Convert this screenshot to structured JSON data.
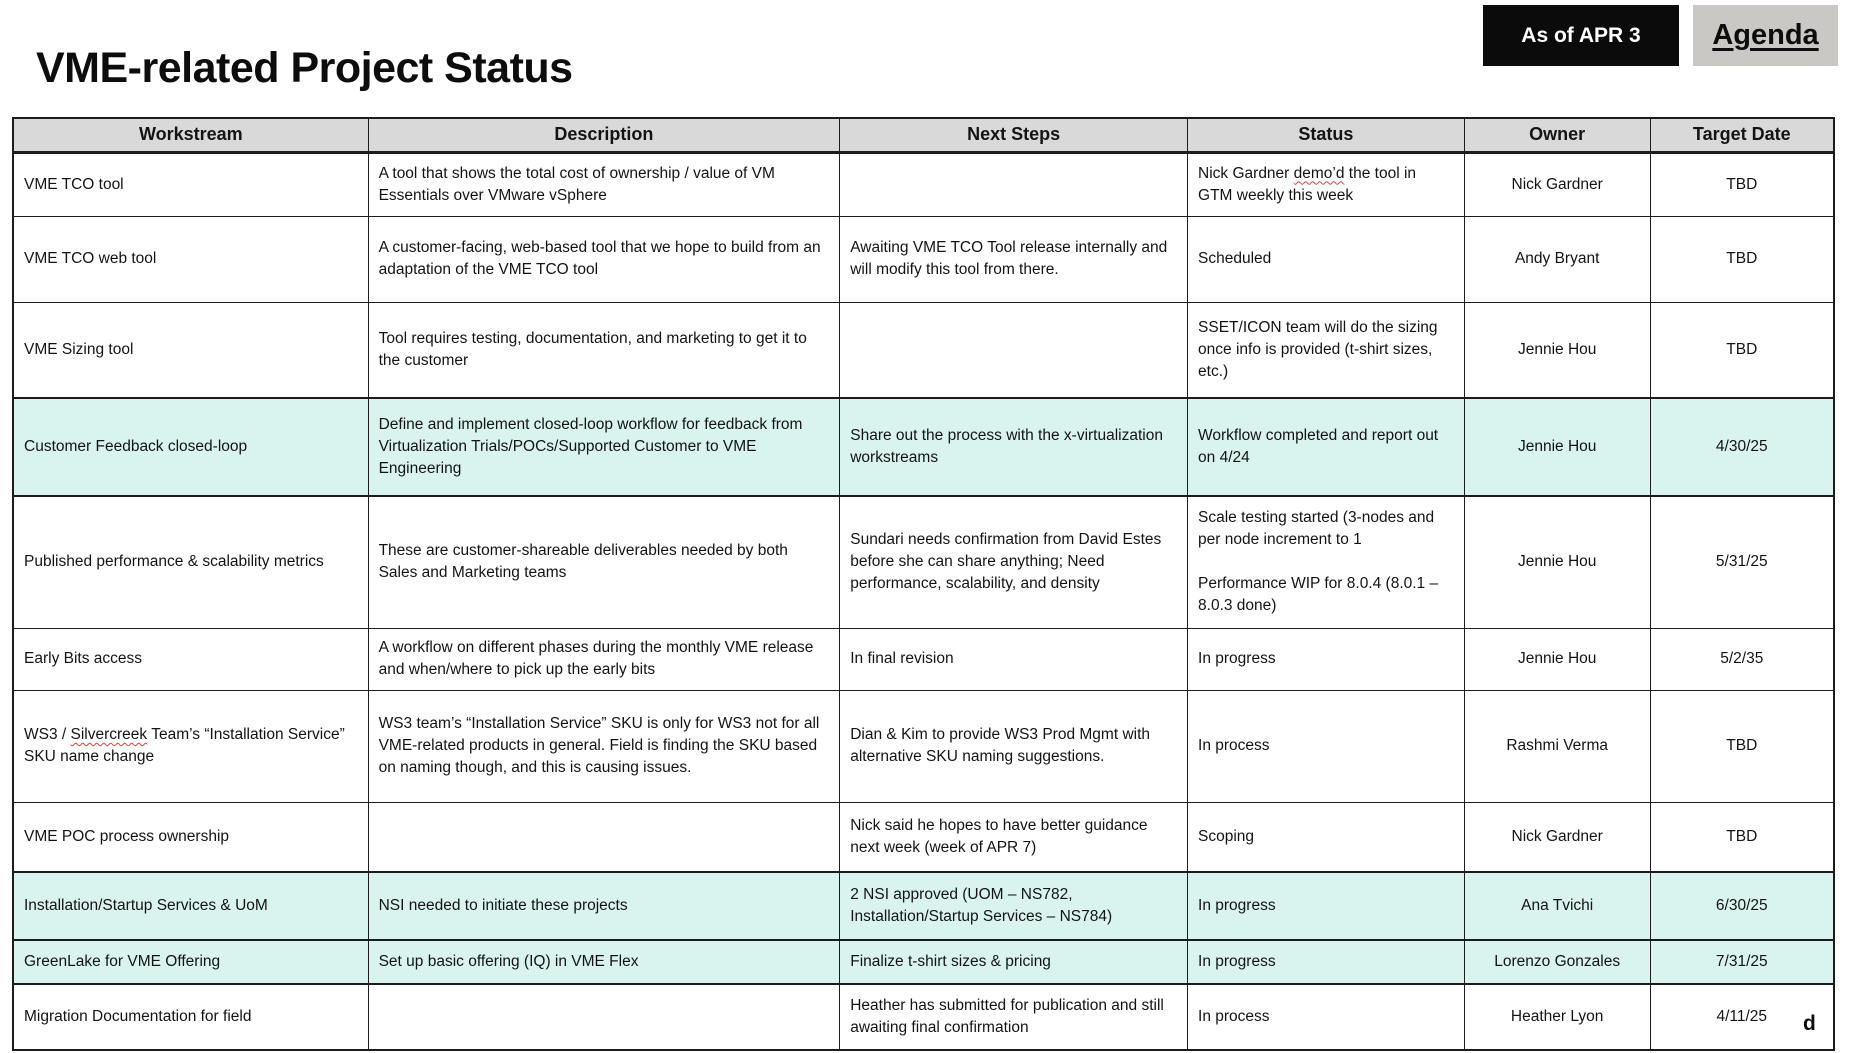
{
  "page": {
    "title": "VME-related Project Status",
    "as_of_badge": "As of APR 3",
    "agenda_link": "Agenda",
    "stray_character": "d"
  },
  "colors": {
    "header_bg": "#d9d9d9",
    "highlight_bg": "#d9f3ee",
    "badge_bg": "#0b0b0b",
    "badge_text": "#ffffff",
    "agenda_bg": "#c9c8c5",
    "border": "#1c1c1c",
    "squiggle": "#d6453c"
  },
  "table": {
    "columns": [
      {
        "key": "workstream",
        "label": "Workstream"
      },
      {
        "key": "description",
        "label": "Description"
      },
      {
        "key": "next_steps",
        "label": "Next Steps"
      },
      {
        "key": "status",
        "label": "Status"
      },
      {
        "key": "owner",
        "label": "Owner"
      },
      {
        "key": "target_date",
        "label": "Target Date"
      }
    ],
    "rows": [
      {
        "workstream": "VME TCO tool",
        "description": "A tool that shows the total cost of ownership / value of VM Essentials over VMware vSphere",
        "next_steps": "",
        "status": [
          {
            "text": "Nick Gardner "
          },
          {
            "text": "demo’d",
            "misspelled": true
          },
          {
            "text": " the tool in GTM weekly this week"
          }
        ],
        "owner": "Nick Gardner",
        "target_date": "TBD",
        "highlighted": false
      },
      {
        "workstream": "VME TCO web tool",
        "description": "A customer-facing, web-based tool that we hope to build from an adaptation of the VME TCO tool",
        "next_steps": "Awaiting VME TCO Tool release internally and will modify this tool from there.",
        "status": "Scheduled",
        "owner": "Andy Bryant",
        "target_date": "TBD",
        "highlighted": false
      },
      {
        "workstream": "VME Sizing tool",
        "description": "Tool requires testing, documentation, and marketing to get it to the customer",
        "next_steps": "",
        "status": "SSET/ICON team will do the sizing once info is provided (t-shirt sizes, etc.)",
        "owner": "Jennie Hou",
        "target_date": "TBD",
        "highlighted": false
      },
      {
        "workstream": "Customer Feedback closed-loop",
        "description": "Define and implement closed-loop workflow for feedback from Virtualization Trials/POCs/Supported Customer to VME Engineering",
        "next_steps": "Share out the process with the x-virtualization workstreams",
        "status": "Workflow completed and report out on 4/24",
        "owner": "Jennie Hou",
        "target_date": "4/30/25",
        "highlighted": true
      },
      {
        "workstream": "Published performance & scalability metrics",
        "description": "These are customer-shareable deliverables needed by both Sales and Marketing teams",
        "next_steps": "Sundari needs confirmation from David Estes before she can share anything; Need performance, scalability, and density",
        "status": "Scale testing started (3-nodes and per node increment to 1\n\nPerformance WIP for 8.0.4 (8.0.1 – 8.0.3 done)",
        "owner": "Jennie Hou",
        "target_date": "5/31/25",
        "highlighted": false
      },
      {
        "workstream": "Early Bits access",
        "description": "A workflow on different phases during the monthly VME release and when/where to pick up the early bits",
        "next_steps": "In final revision",
        "status": "In progress",
        "owner": "Jennie Hou",
        "target_date": "5/2/35",
        "highlighted": false
      },
      {
        "workstream": [
          {
            "text": "WS3 / "
          },
          {
            "text": "Silvercreek",
            "misspelled": true
          },
          {
            "text": " Team’s “Installation Service” SKU name change"
          }
        ],
        "description": "WS3 team’s “Installation Service” SKU is only for WS3 not for all VME-related products in general. Field is finding the SKU based on naming though, and this is causing issues.",
        "next_steps": "Dian & Kim to provide WS3 Prod Mgmt with alternative SKU naming suggestions.",
        "status": "In process",
        "owner": "Rashmi Verma",
        "target_date": "TBD",
        "highlighted": false
      },
      {
        "workstream": "VME POC process ownership",
        "description": "",
        "next_steps": "Nick said he hopes to have better guidance next week (week of APR 7)",
        "status": "Scoping",
        "owner": "Nick Gardner",
        "target_date": "TBD",
        "highlighted": false
      },
      {
        "workstream": "Installation/Startup Services & UoM",
        "description": "NSI needed to initiate these projects",
        "next_steps": "2 NSI approved (UOM – NS782, Installation/Startup Services – NS784)",
        "status": "In progress",
        "owner": "Ana Tvichi",
        "target_date": "6/30/25",
        "highlighted": true
      },
      {
        "workstream": "GreenLake for VME Offering",
        "description": "Set up basic offering (IQ) in VME Flex",
        "next_steps": "Finalize t-shirt sizes & pricing",
        "status": "In progress",
        "owner": "Lorenzo Gonzales",
        "target_date": "7/31/25",
        "highlighted": true
      },
      {
        "workstream": "Migration Documentation for field",
        "description": "",
        "next_steps": "Heather has submitted for publication and still awaiting final confirmation",
        "status": "In process",
        "owner": "Heather Lyon",
        "target_date": "4/11/25",
        "highlighted": false
      }
    ]
  }
}
